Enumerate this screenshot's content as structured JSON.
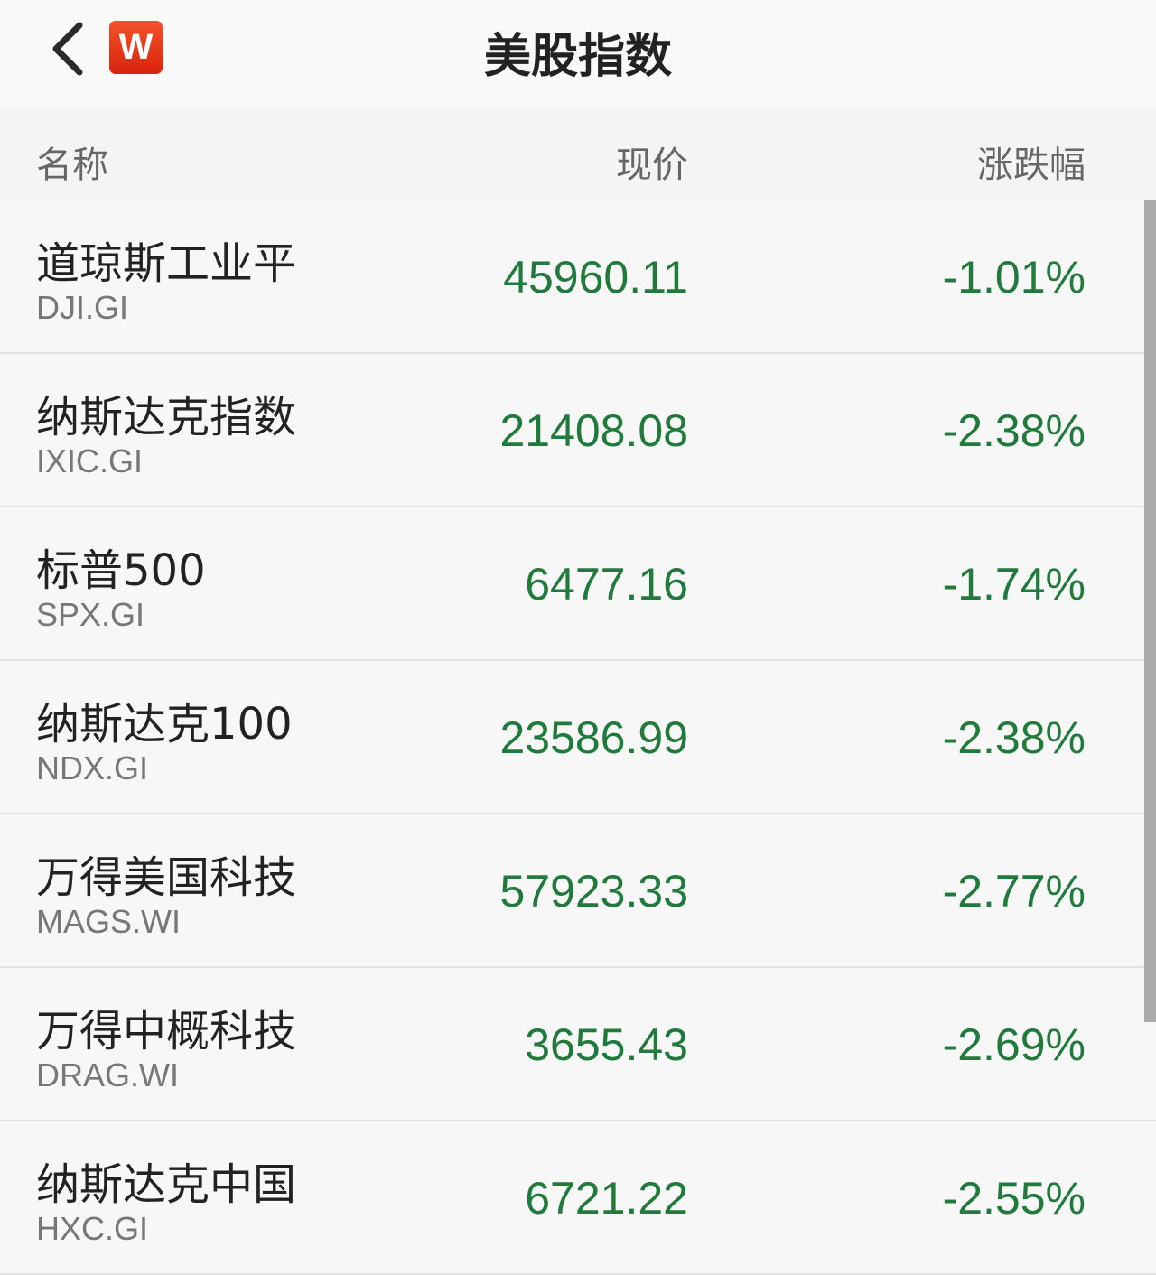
{
  "header": {
    "title": "美股指数",
    "logo_text": "W",
    "back_icon": "chevron-left-icon"
  },
  "columns": {
    "name": "名称",
    "price": "现价",
    "change": "涨跌幅"
  },
  "colors": {
    "down": "#1f7a3c",
    "logo": "#e63a1a"
  },
  "rows": [
    {
      "name": "道琼斯工业平",
      "code": "DJI.GI",
      "price": "45960.11",
      "change": "-1.01%"
    },
    {
      "name": "纳斯达克指数",
      "code": "IXIC.GI",
      "price": "21408.08",
      "change": "-2.38%"
    },
    {
      "name": "标普500",
      "code": "SPX.GI",
      "price": "6477.16",
      "change": "-1.74%"
    },
    {
      "name": "纳斯达克100",
      "code": "NDX.GI",
      "price": "23586.99",
      "change": "-2.38%"
    },
    {
      "name": "万得美国科技",
      "code": "MAGS.WI",
      "price": "57923.33",
      "change": "-2.77%"
    },
    {
      "name": "万得中概科技",
      "code": "DRAG.WI",
      "price": "3655.43",
      "change": "-2.69%"
    },
    {
      "name": "纳斯达克中国",
      "code": "HXC.GI",
      "price": "6721.22",
      "change": "-2.55%"
    }
  ]
}
